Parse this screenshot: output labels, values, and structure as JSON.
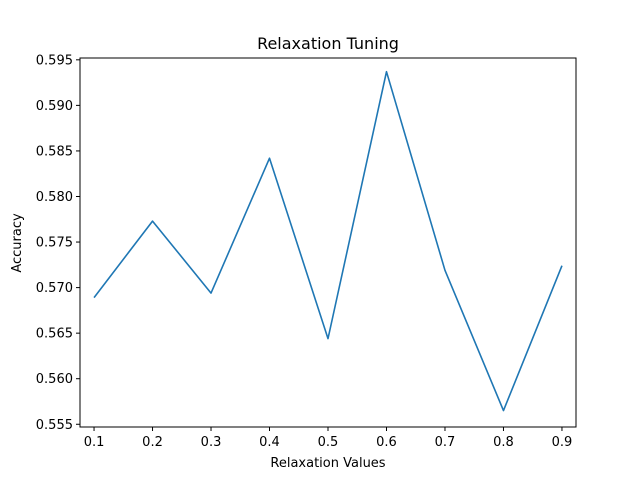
{
  "chart_data": {
    "type": "line",
    "title": "Relaxation Tuning",
    "xlabel": "Relaxation Values",
    "ylabel": "Accuracy",
    "x": [
      0.1,
      0.2,
      0.3,
      0.4,
      0.5,
      0.6,
      0.7,
      0.8,
      0.9
    ],
    "series": [
      {
        "values": [
          0.5689,
          0.5773,
          0.5694,
          0.5842,
          0.5644,
          0.5937,
          0.5719,
          0.5565,
          0.5724
        ],
        "color": "#1f77b4"
      }
    ],
    "xlim": [
      0.076,
      0.924
    ],
    "ylim": [
      0.5547,
      0.5952
    ],
    "xticks": [
      "0.1",
      "0.2",
      "0.3",
      "0.4",
      "0.5",
      "0.6",
      "0.7",
      "0.8",
      "0.9"
    ],
    "yticks": [
      "0.555",
      "0.560",
      "0.565",
      "0.570",
      "0.575",
      "0.580",
      "0.585",
      "0.590",
      "0.595"
    ],
    "grid": false,
    "legend": "none"
  }
}
